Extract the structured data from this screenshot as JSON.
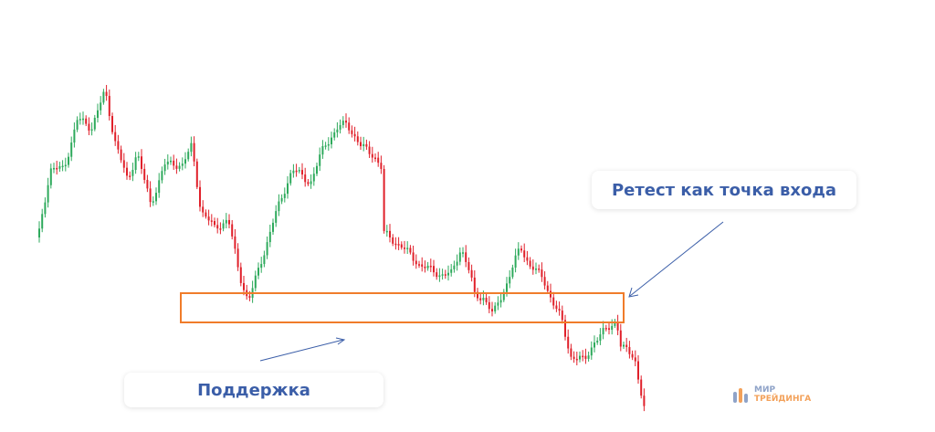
{
  "labels": {
    "support": "Поддержка",
    "retest": "Ретест как точка входа"
  },
  "logo": {
    "line1": "МИР",
    "line2": "ТРЕЙДИНГА"
  }
}
